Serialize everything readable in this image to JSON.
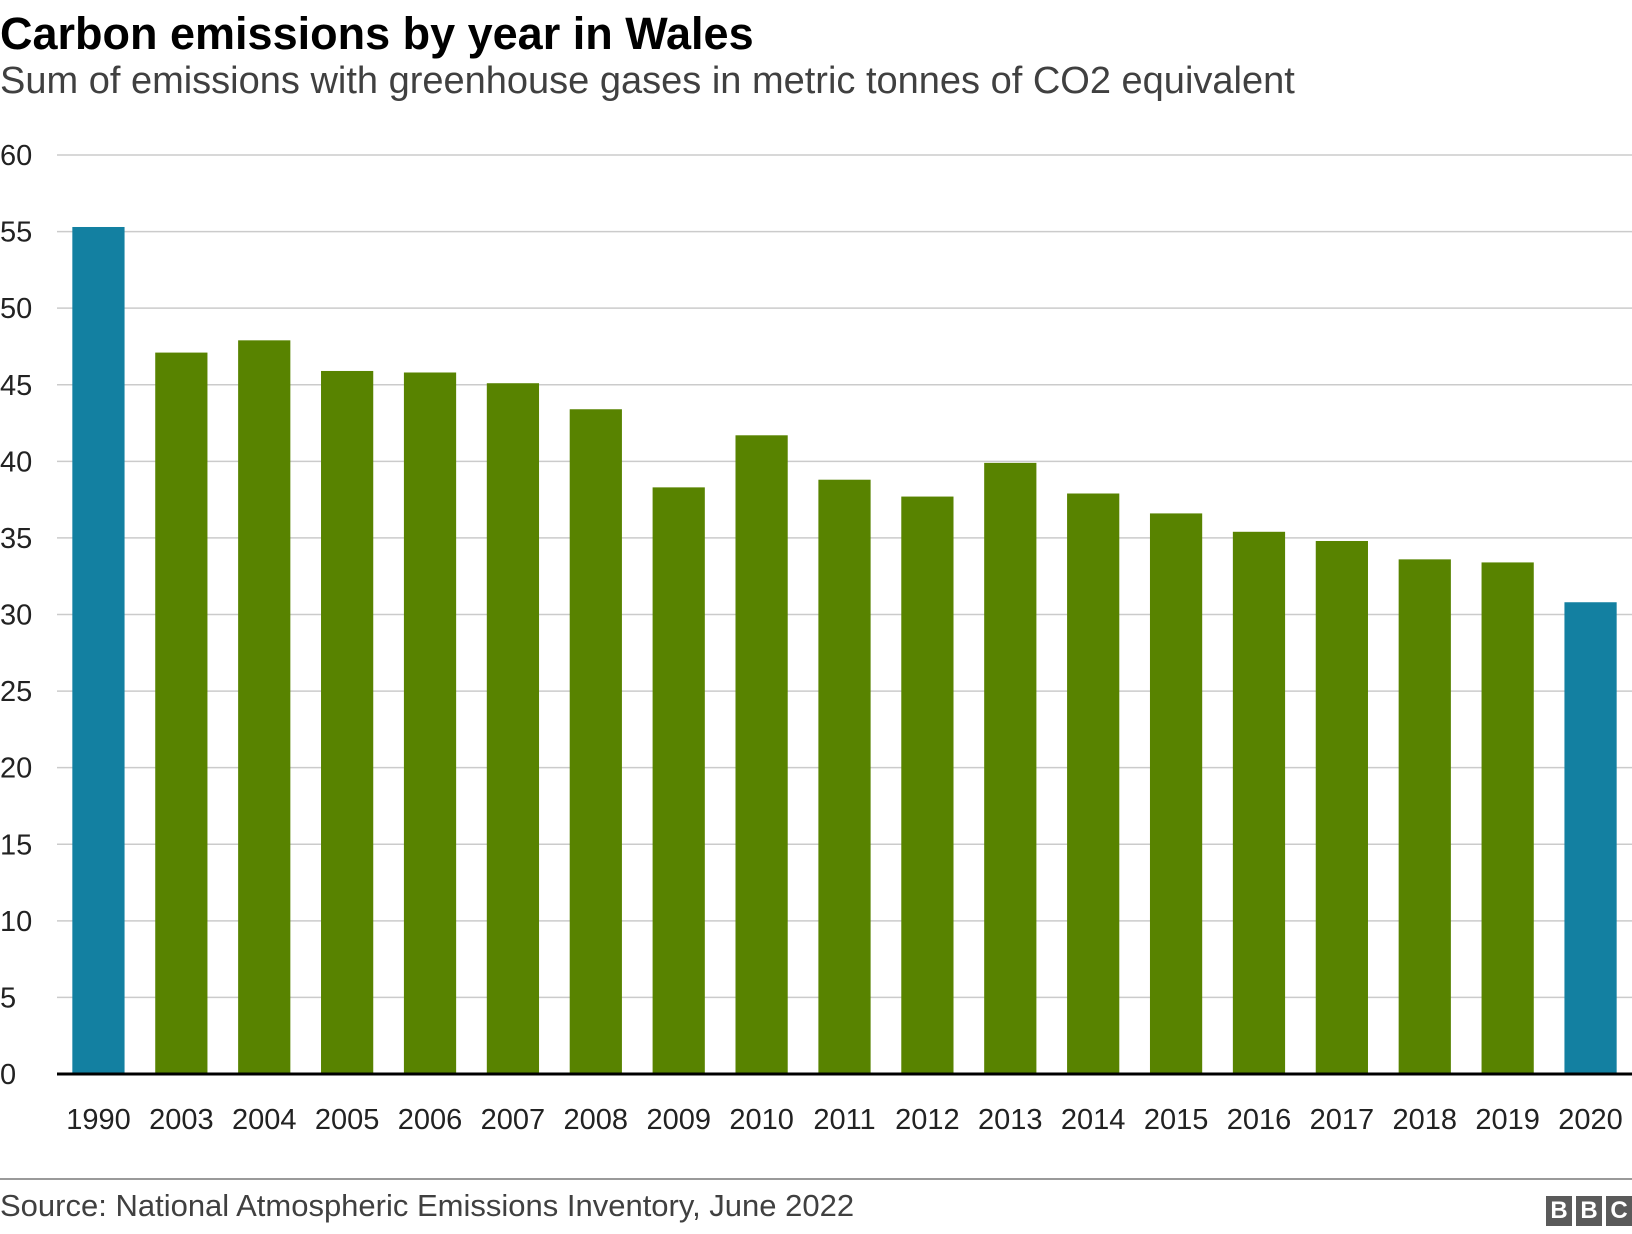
{
  "chart_data": {
    "type": "bar",
    "title": "Carbon emissions by year in Wales",
    "subtitle": "Sum of emissions with greenhouse gases in metric tonnes of CO2 equivalent",
    "xlabel": "",
    "ylabel": "",
    "ylim": [
      0,
      60
    ],
    "yticks": [
      0,
      5,
      10,
      15,
      20,
      25,
      30,
      35,
      40,
      45,
      50,
      55,
      60
    ],
    "grid": true,
    "categories": [
      "1990",
      "2003",
      "2004",
      "2005",
      "2006",
      "2007",
      "2008",
      "2009",
      "2010",
      "2011",
      "2012",
      "2013",
      "2014",
      "2015",
      "2016",
      "2017",
      "2018",
      "2019",
      "2020"
    ],
    "values": [
      55.3,
      47.1,
      47.9,
      45.9,
      45.8,
      45.1,
      43.4,
      38.3,
      41.7,
      38.8,
      37.7,
      39.9,
      37.9,
      36.6,
      35.4,
      34.8,
      33.6,
      33.4,
      30.8
    ],
    "colors": {
      "highlight": "#1380a1",
      "default": "#588300",
      "grid": "#cbcbcb",
      "axis": "#000000"
    },
    "highlighted": [
      "1990",
      "2020"
    ],
    "source": "Source: National Atmospheric Emissions Inventory, June 2022"
  },
  "branding": {
    "logo_letters": [
      "B",
      "B",
      "C"
    ]
  }
}
